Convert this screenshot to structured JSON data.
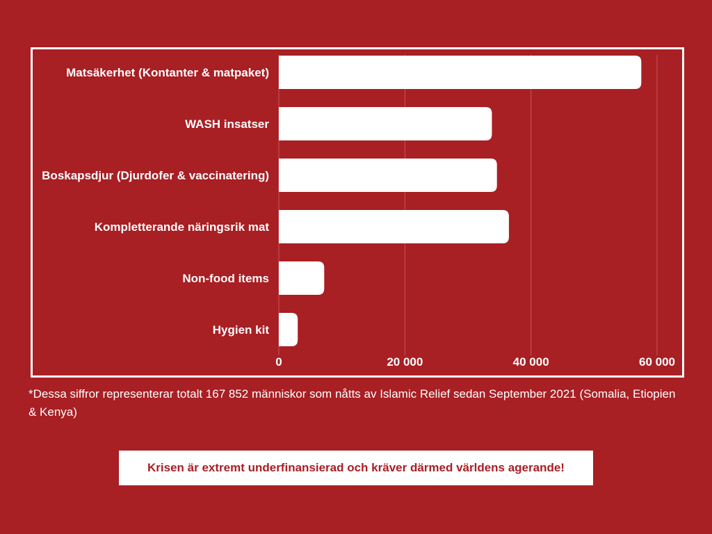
{
  "colors": {
    "background": "#a81f24",
    "bar": "#ffffff",
    "text": "#ffffff",
    "gridline": "#c8565a",
    "cta_text": "#a81f24"
  },
  "chart_data": {
    "type": "bar",
    "orientation": "horizontal",
    "categories": [
      "Matsäkerhet (Kontanter & matpaket)",
      "WASH insatser",
      "Boskapsdjur (Djurdofer & vaccinatering)",
      "Kompletterande näringsrik mat",
      "Non-food items",
      "Hygien kit"
    ],
    "values": [
      57500,
      33800,
      34600,
      36500,
      7200,
      3000
    ],
    "xlim": [
      0,
      60000
    ],
    "ticks": [
      0,
      20000,
      40000,
      60000
    ],
    "tick_labels": [
      "0",
      "20 000",
      "40 000",
      "60 000"
    ],
    "grid": "vertical",
    "title": "",
    "xlabel": "",
    "ylabel": ""
  },
  "footnote": "*Dessa siffror representerar totalt 167 852 människor som nåtts av Islamic Relief sedan September 2021 (Somalia, Etiopien & Kenya)",
  "cta": "Krisen är extremt underfinansierad och kräver därmed världens agerande!"
}
